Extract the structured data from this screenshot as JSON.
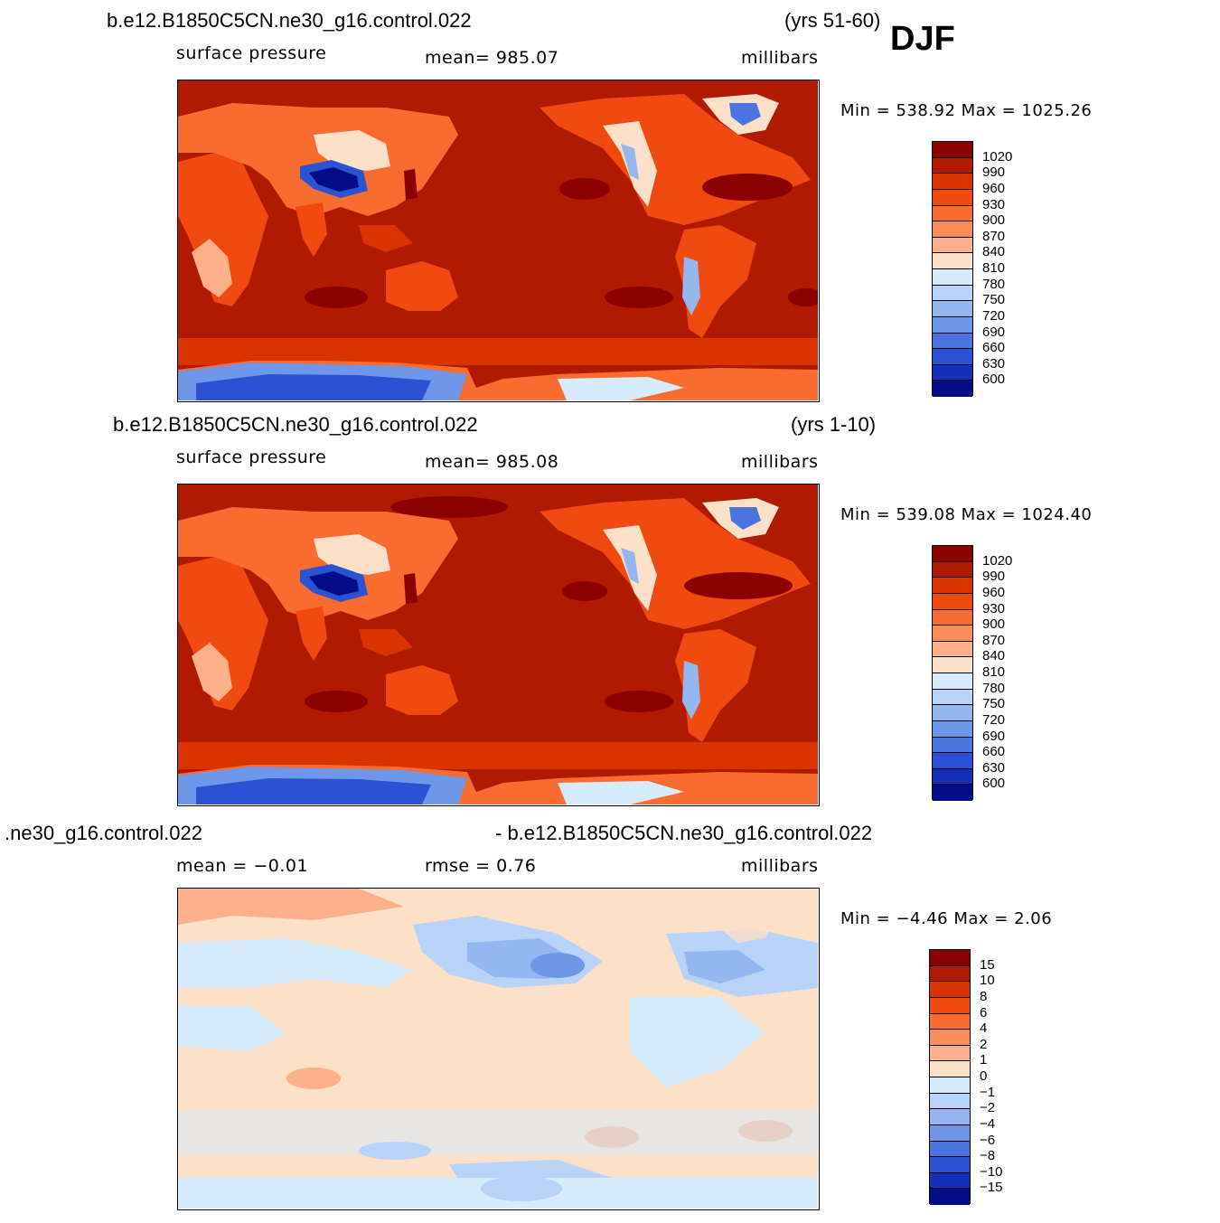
{
  "header": {
    "season": "DJF"
  },
  "panels": [
    {
      "case_left": "b.e12.B1850C5CN.ne30_g16.control.022",
      "case_right": "(yrs 51-60)",
      "variable": "surface pressure",
      "stat": "mean=  985.07",
      "units": "millibars",
      "minmax": "Min =  538.92  Max =  1025.26",
      "colorbar": {
        "labels": [
          "1020",
          "990",
          "960",
          "930",
          "900",
          "870",
          "840",
          "810",
          "780",
          "750",
          "720",
          "690",
          "660",
          "630",
          "600"
        ],
        "colors": [
          "#8b0000",
          "#b01a00",
          "#d93300",
          "#f04a10",
          "#f86c30",
          "#fb8d5a",
          "#fdb08a",
          "#fde0c8",
          "#d6ebfc",
          "#b8d3f7",
          "#94b7f2",
          "#6e97ea",
          "#4a75e0",
          "#2b52d2",
          "#1530b8",
          "#050c88"
        ]
      }
    },
    {
      "case_left": "b.e12.B1850C5CN.ne30_g16.control.022",
      "case_right": "(yrs 1-10)",
      "variable": "surface pressure",
      "stat": "mean=  985.08",
      "units": "millibars",
      "minmax": "Min =  539.08  Max =  1024.40",
      "colorbar": {
        "labels": [
          "1020",
          "990",
          "960",
          "930",
          "900",
          "870",
          "840",
          "810",
          "780",
          "750",
          "720",
          "690",
          "660",
          "630",
          "600"
        ],
        "colors": [
          "#8b0000",
          "#b01a00",
          "#d93300",
          "#f04a10",
          "#f86c30",
          "#fb8d5a",
          "#fdb08a",
          "#fde0c8",
          "#d6ebfc",
          "#b8d3f7",
          "#94b7f2",
          "#6e97ea",
          "#4a75e0",
          "#2b52d2",
          "#1530b8",
          "#050c88"
        ]
      }
    },
    {
      "case_left": ".ne30_g16.control.022",
      "case_right": "- b.e12.B1850C5CN.ne30_g16.control.022",
      "stat_left": "mean =   −0.01",
      "stat_mid": "rmse =     0.76",
      "units": "millibars",
      "minmax": "Min =   −4.46  Max =     2.06",
      "colorbar": {
        "labels": [
          "15",
          "10",
          "8",
          "6",
          "4",
          "2",
          "1",
          "0",
          "−1",
          "−2",
          "−4",
          "−6",
          "−8",
          "−10",
          "−15"
        ],
        "colors": [
          "#8b0000",
          "#b01a00",
          "#d93300",
          "#f04a10",
          "#f86c30",
          "#fb8d5a",
          "#fdb08a",
          "#fde0c8",
          "#d6ebfc",
          "#b8d3f7",
          "#94b7f2",
          "#6e97ea",
          "#4a75e0",
          "#2b52d2",
          "#1530b8",
          "#050c88"
        ]
      }
    }
  ]
}
